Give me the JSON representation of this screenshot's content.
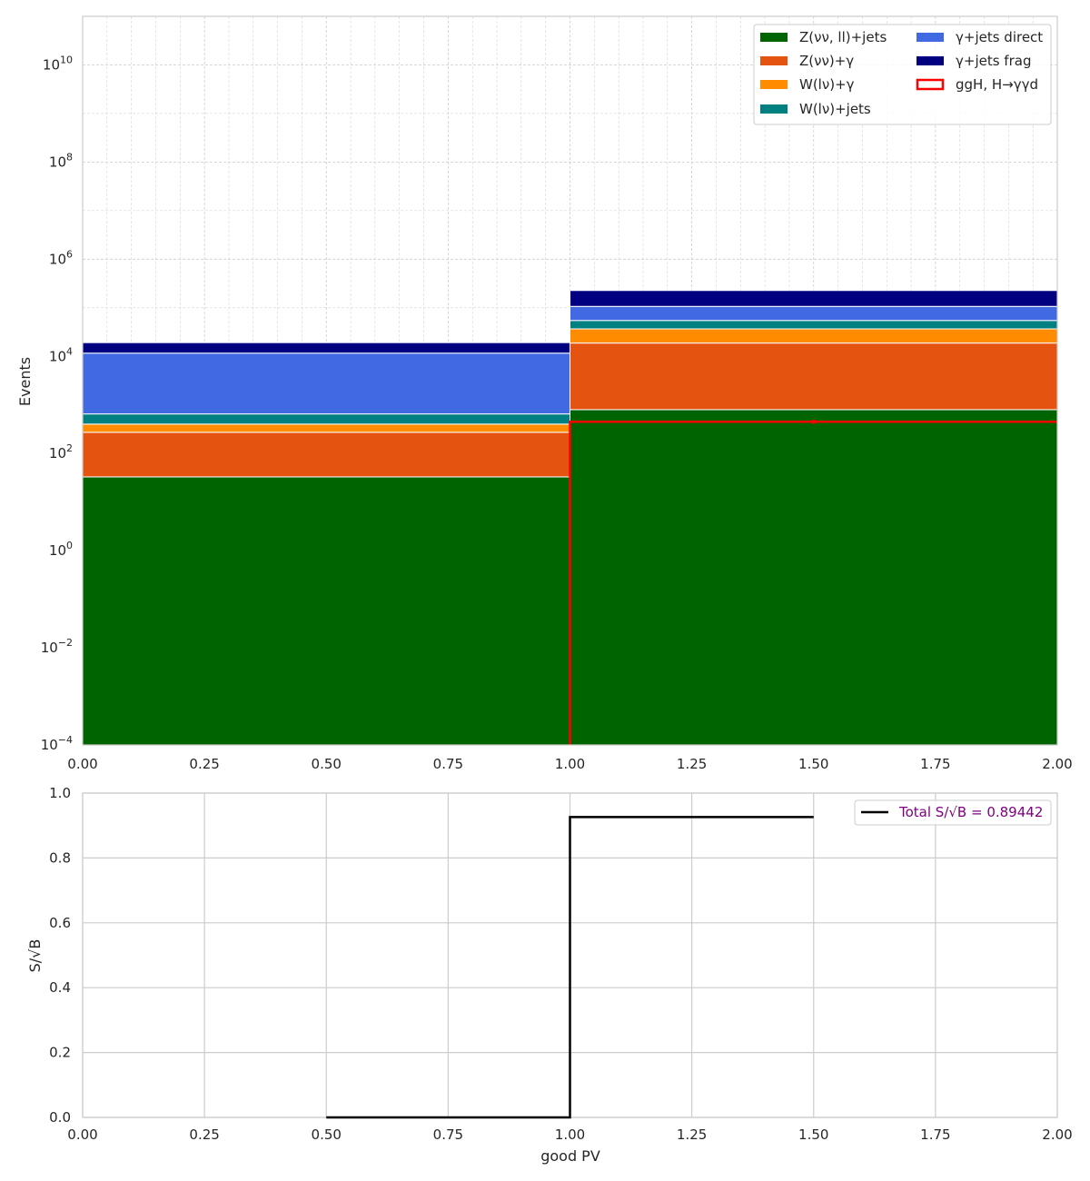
{
  "chart_data": [
    {
      "type": "bar",
      "subtype": "stacked_histogram",
      "y_scale": "log",
      "ylabel": "Events",
      "xlabel": "",
      "xlim": [
        0,
        2
      ],
      "ylim": [
        0.0001,
        100000000000
      ],
      "bin_edges": [
        0,
        1,
        2
      ],
      "x_ticks": [
        "0.00",
        "0.25",
        "0.50",
        "0.75",
        "1.00",
        "1.25",
        "1.50",
        "1.75",
        "2.00"
      ],
      "y_ticks": [
        {
          "base": "10",
          "exp": "−4",
          "value": 0.0001
        },
        {
          "base": "10",
          "exp": "−2",
          "value": 0.01
        },
        {
          "base": "10",
          "exp": "0",
          "value": 1
        },
        {
          "base": "10",
          "exp": "2",
          "value": 100
        },
        {
          "base": "10",
          "exp": "4",
          "value": 10000
        },
        {
          "base": "10",
          "exp": "6",
          "value": 1000000
        },
        {
          "base": "10",
          "exp": "8",
          "value": 100000000
        },
        {
          "base": "10",
          "exp": "10",
          "value": 10000000000
        }
      ],
      "grid": true,
      "legend_position": "top-right",
      "series": [
        {
          "name": "Z(νν, ll)+jets",
          "color": "#006400",
          "values": [
            33,
            800
          ]
        },
        {
          "name": "Z(νν)+γ",
          "color": "#e45410",
          "values": [
            240,
            18000
          ]
        },
        {
          "name": "W(lν)+γ",
          "color": "#ff8c00",
          "values": [
            130,
            18000
          ]
        },
        {
          "name": "W(lν)+jets",
          "color": "#008080",
          "values": [
            250,
            18000
          ]
        },
        {
          "name": "γ+jets direct",
          "color": "#4169e1",
          "values": [
            11000,
            52000
          ]
        },
        {
          "name": "γ+jets frag",
          "color": "#000080",
          "values": [
            7500,
            120000
          ]
        }
      ],
      "signal": {
        "name": "ggH, H→γγd",
        "color": "#ff0000",
        "values": [
          0,
          450
        ]
      },
      "legend": [
        {
          "label": "Z(νν, ll)+jets",
          "color": "#006400",
          "style": "fill"
        },
        {
          "label": "Z(νν)+γ",
          "color": "#e45410",
          "style": "fill"
        },
        {
          "label": "W(lν)+γ",
          "color": "#ff8c00",
          "style": "fill"
        },
        {
          "label": "W(lν)+jets",
          "color": "#008080",
          "style": "fill"
        },
        {
          "label": "γ+jets direct",
          "color": "#4169e1",
          "style": "fill"
        },
        {
          "label": "γ+jets frag",
          "color": "#000080",
          "style": "fill"
        },
        {
          "label": "ggH, H→γγd",
          "color": "#ff0000",
          "style": "outline"
        }
      ]
    },
    {
      "type": "line",
      "subtype": "step",
      "ylabel": "S/√B",
      "xlabel": "good PV",
      "xlim": [
        0,
        2
      ],
      "ylim": [
        0,
        1
      ],
      "x_ticks": [
        "0.00",
        "0.25",
        "0.50",
        "0.75",
        "1.00",
        "1.25",
        "1.50",
        "1.75",
        "2.00"
      ],
      "y_ticks": [
        "0.0",
        "0.2",
        "0.4",
        "0.6",
        "0.8",
        "1.0"
      ],
      "grid": true,
      "legend_position": "top-right",
      "series": [
        {
          "name": "Total S/√B = 0.89442",
          "color": "#000000",
          "x": [
            0.5,
            1.0,
            1.0,
            1.5
          ],
          "y": [
            0,
            0,
            0.926,
            0.926
          ]
        }
      ],
      "legend_text_color": "#800080"
    }
  ]
}
